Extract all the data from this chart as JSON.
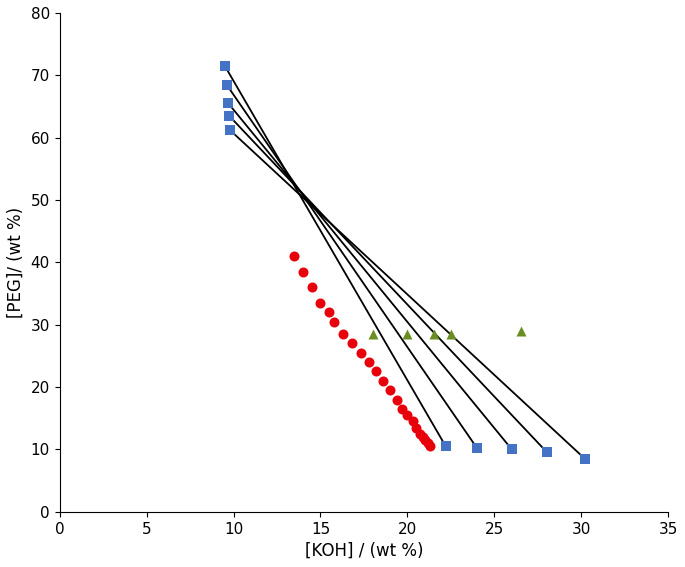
{
  "xlabel": "[KOH] / (wt %)",
  "ylabel": "[PEG]/ (wt %)",
  "xlim": [
    0,
    35
  ],
  "ylim": [
    0,
    80
  ],
  "xticks": [
    0,
    5,
    10,
    15,
    20,
    25,
    30,
    35
  ],
  "yticks": [
    0,
    10,
    20,
    30,
    40,
    50,
    60,
    70,
    80
  ],
  "blue_squares_top": [
    [
      9.5,
      71.5
    ],
    [
      9.6,
      68.5
    ],
    [
      9.7,
      65.5
    ],
    [
      9.75,
      63.5
    ],
    [
      9.8,
      61.2
    ]
  ],
  "blue_squares_bottom": [
    [
      22.2,
      10.5
    ],
    [
      24.0,
      10.2
    ],
    [
      26.0,
      10.0
    ],
    [
      28.0,
      9.6
    ],
    [
      30.2,
      8.5
    ]
  ],
  "red_circles": [
    [
      13.5,
      41.0
    ],
    [
      14.0,
      38.5
    ],
    [
      14.5,
      36.0
    ],
    [
      15.0,
      33.5
    ],
    [
      15.5,
      32.0
    ],
    [
      15.8,
      30.5
    ],
    [
      16.3,
      28.5
    ],
    [
      16.8,
      27.0
    ],
    [
      17.3,
      25.5
    ],
    [
      17.8,
      24.0
    ],
    [
      18.2,
      22.5
    ],
    [
      18.6,
      21.0
    ],
    [
      19.0,
      19.5
    ],
    [
      19.4,
      18.0
    ],
    [
      19.7,
      16.5
    ],
    [
      20.0,
      15.5
    ],
    [
      20.3,
      14.5
    ],
    [
      20.5,
      13.5
    ],
    [
      20.7,
      12.5
    ],
    [
      20.9,
      12.0
    ],
    [
      21.0,
      11.5
    ],
    [
      21.2,
      11.0
    ],
    [
      21.3,
      10.5
    ]
  ],
  "green_triangles": [
    [
      18.0,
      28.5
    ],
    [
      20.0,
      28.5
    ],
    [
      21.5,
      28.5
    ],
    [
      22.5,
      28.5
    ],
    [
      26.5,
      29.0
    ]
  ],
  "blue_color": "#4472C4",
  "red_color": "#E8000A",
  "green_color": "#6B8E23",
  "line_color": "black",
  "marker_size_square": 52,
  "marker_size_circle": 52,
  "marker_size_triangle": 52,
  "line_width": 1.3,
  "xlabel_fontsize": 12,
  "ylabel_fontsize": 12,
  "tick_fontsize": 11
}
